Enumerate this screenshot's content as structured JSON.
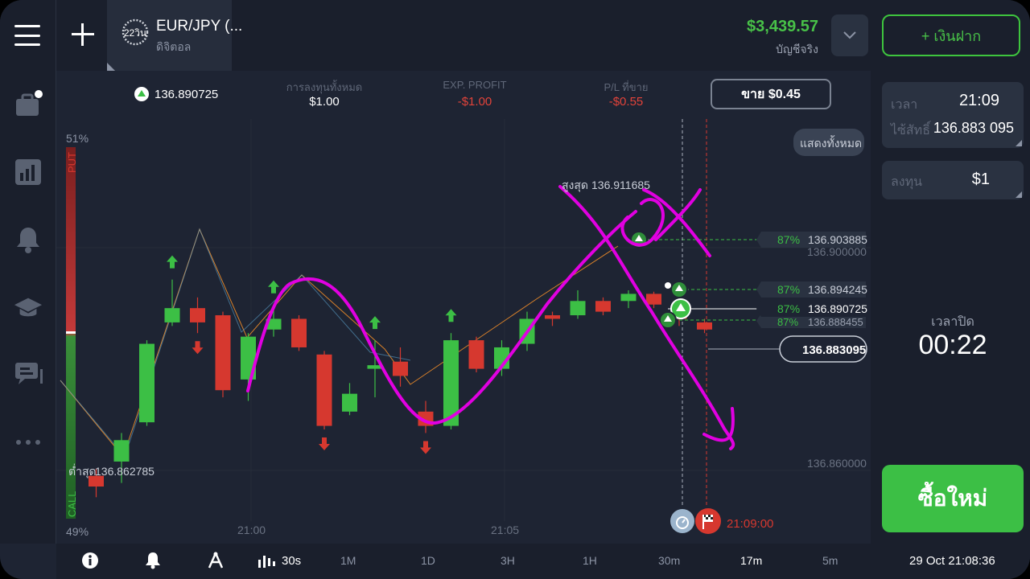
{
  "header": {
    "timer_label": "22วิน",
    "asset_name": "EUR/JPY (...",
    "asset_type": "ดิจิตอล",
    "balance": "$3,439.57",
    "account_label": "บัญชีจริง",
    "deposit_label": "+ เงินฝาก"
  },
  "sidebar": {
    "items": [
      "briefcase-icon",
      "chart-icon",
      "bell-icon",
      "graduation-cap-icon",
      "chat-icon",
      "more-icon"
    ]
  },
  "info": {
    "current_price": "136.890725",
    "invest_label": "การลงทุนทั้งหมด",
    "invest_value": "$1.00",
    "exp_label": "EXP. PROFIT",
    "exp_value": "-$1.00",
    "pl_label": "P/L ที่ขาย",
    "pl_value": "-$0.55",
    "sell_button": "ขาย $0.45"
  },
  "chart": {
    "put_pct": "51%",
    "put_label": "PUT",
    "call_pct": "49%",
    "call_label": "CALL",
    "show_all": "แสดงทั้งหมด",
    "high_label": "สูงสุด",
    "high_value": "136.911685",
    "low_label": "ต่ำสุด",
    "low_value": "136.862785",
    "y_tick_1": "136.900000",
    "y_tick_2": "136.860000",
    "x_tick_1": "21:00",
    "x_tick_2": "21:05",
    "expiry_time": "21:09:00",
    "deals": [
      {
        "pct": "87%",
        "price": "136.903885"
      },
      {
        "pct": "87%",
        "price": "136.894245"
      },
      {
        "pct": "87%",
        "price": "136.890725"
      },
      {
        "pct": "87%",
        "price": "136.888455"
      }
    ],
    "current_tag": "136.883095",
    "colors": {
      "up": "#3cbf45",
      "down": "#d6382f",
      "annotation": "#e100e1"
    }
  },
  "chart_data": {
    "type": "candlestick",
    "candles": [
      {
        "o": 136.866,
        "c": 136.8645,
        "h": 136.867,
        "l": 136.863
      },
      {
        "o": 136.868,
        "c": 136.871,
        "h": 136.872,
        "l": 136.865
      },
      {
        "o": 136.8735,
        "c": 136.8845,
        "h": 136.885,
        "l": 136.873
      },
      {
        "o": 136.8875,
        "c": 136.8895,
        "h": 136.8935,
        "l": 136.887
      },
      {
        "o": 136.8895,
        "c": 136.8875,
        "h": 136.891,
        "l": 136.886
      },
      {
        "o": 136.8885,
        "c": 136.878,
        "h": 136.889,
        "l": 136.877
      },
      {
        "o": 136.8795,
        "c": 136.8855,
        "h": 136.886,
        "l": 136.8765
      },
      {
        "o": 136.8865,
        "c": 136.888,
        "h": 136.89,
        "l": 136.8855
      },
      {
        "o": 136.888,
        "c": 136.884,
        "h": 136.8885,
        "l": 136.8835
      },
      {
        "o": 136.883,
        "c": 136.873,
        "h": 136.8835,
        "l": 136.8725
      },
      {
        "o": 136.875,
        "c": 136.8775,
        "h": 136.879,
        "l": 136.8745
      },
      {
        "o": 136.881,
        "c": 136.8815,
        "h": 136.885,
        "l": 136.877
      },
      {
        "o": 136.882,
        "c": 136.88,
        "h": 136.884,
        "l": 136.8785
      },
      {
        "o": 136.875,
        "c": 136.873,
        "h": 136.8765,
        "l": 136.872
      },
      {
        "o": 136.873,
        "c": 136.885,
        "h": 136.886,
        "l": 136.8725
      },
      {
        "o": 136.885,
        "c": 136.881,
        "h": 136.8855,
        "l": 136.8805
      },
      {
        "o": 136.881,
        "c": 136.884,
        "h": 136.885,
        "l": 136.88
      },
      {
        "o": 136.8845,
        "c": 136.888,
        "h": 136.889,
        "l": 136.8835
      },
      {
        "o": 136.8885,
        "c": 136.888,
        "h": 136.889,
        "l": 136.887
      },
      {
        "o": 136.8885,
        "c": 136.8905,
        "h": 136.892,
        "l": 136.888
      },
      {
        "o": 136.8905,
        "c": 136.889,
        "h": 136.891,
        "l": 136.8885
      },
      {
        "o": 136.8905,
        "c": 136.8915,
        "h": 136.892,
        "l": 136.8895
      },
      {
        "o": 136.8915,
        "c": 136.89,
        "h": 136.8918,
        "l": 136.8895
      },
      {
        "o": 136.89,
        "c": 136.888,
        "h": 136.8905,
        "l": 136.887
      },
      {
        "o": 136.8875,
        "c": 136.8865,
        "h": 136.888,
        "l": 136.886
      }
    ],
    "signals": [
      {
        "i": 3,
        "dir": "up"
      },
      {
        "i": 4,
        "dir": "down"
      },
      {
        "i": 7,
        "dir": "up"
      },
      {
        "i": 9,
        "dir": "down"
      },
      {
        "i": 11,
        "dir": "up"
      },
      {
        "i": 13,
        "dir": "down"
      },
      {
        "i": 14,
        "dir": "up"
      }
    ],
    "y_range": [
      136.8565,
      136.916
    ]
  },
  "right_panel": {
    "time_label": "เวลา",
    "time_value": "21:09",
    "strike_label": "ไซ้สัทธิ์",
    "strike_value": "136.883 095",
    "invest_label": "ลงทุน",
    "invest_value": "$1",
    "close_label": "เวลาปิด",
    "close_value": "00:22",
    "buy_button": "ซื้อใหม่"
  },
  "bottom": {
    "interval": "30s",
    "tf": [
      "1M",
      "1D",
      "3H",
      "1H",
      "30m",
      "17m",
      "5m"
    ],
    "datetime": "29 Oct 21:08:36"
  }
}
